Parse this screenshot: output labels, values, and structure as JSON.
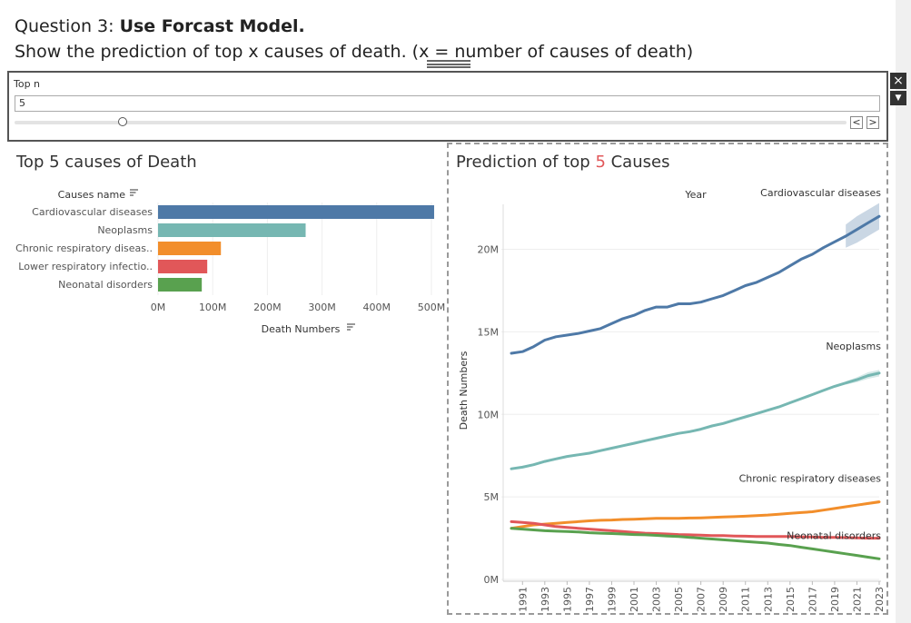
{
  "question": {
    "prefix": "Question 3: ",
    "bold": "Use Forcast Model.",
    "line2": "Show the prediction of top  x causes of death. (x = number of causes of death)"
  },
  "parameter": {
    "title": "Top n",
    "value": "5",
    "slider_fraction": 0.13,
    "prev_label": "<",
    "next_label": ">",
    "close_icon": "close-icon",
    "menu_icon": "chevron-down-icon"
  },
  "left": {
    "title": "Top 5 causes of Death"
  },
  "right": {
    "title_prefix": "Prediction of top ",
    "title_n": "5",
    "title_suffix": " Causes"
  },
  "colors": {
    "cardio": "#4e79a7",
    "neoplasms": "#76b7b2",
    "chronic": "#f28e2b",
    "lower": "#e15759",
    "neonatal": "#59a14f"
  },
  "chart_data": [
    {
      "type": "bar",
      "orientation": "horizontal",
      "category_header": "Causes name",
      "categories": [
        "Cardiovascular diseases",
        "Neoplasms",
        "Chronic respiratory diseas..",
        "Lower respiratory infectio..",
        "Neonatal disorders"
      ],
      "values": [
        505000000,
        270000000,
        115000000,
        90000000,
        80000000
      ],
      "xlabel": "Death Numbers",
      "xlim": [
        0,
        520000000
      ],
      "xticks": [
        {
          "v": 0,
          "label": "0M"
        },
        {
          "v": 100000000,
          "label": "100M"
        },
        {
          "v": 200000000,
          "label": "200M"
        },
        {
          "v": 300000000,
          "label": "300M"
        },
        {
          "v": 400000000,
          "label": "400M"
        },
        {
          "v": 500000000,
          "label": "500M"
        }
      ]
    },
    {
      "type": "line",
      "top_label": "Year",
      "ylabel": "Death Numbers",
      "xlim": [
        1990,
        2023
      ],
      "ylim": [
        0,
        23000000
      ],
      "yticks": [
        {
          "v": 0,
          "label": "0M"
        },
        {
          "v": 5000000,
          "label": "5M"
        },
        {
          "v": 10000000,
          "label": "10M"
        },
        {
          "v": 15000000,
          "label": "15M"
        },
        {
          "v": 20000000,
          "label": "20M"
        }
      ],
      "xticks": [
        1991,
        1993,
        1995,
        1997,
        1999,
        2001,
        2003,
        2005,
        2007,
        2009,
        2011,
        2013,
        2015,
        2017,
        2019,
        2021,
        2023
      ],
      "forecast_start": 2020,
      "series": [
        {
          "name": "Cardiovascular diseases",
          "color": "#4e79a7",
          "points": [
            [
              1990,
              13.7
            ],
            [
              1991,
              13.8
            ],
            [
              1992,
              14.1
            ],
            [
              1993,
              14.5
            ],
            [
              1994,
              14.7
            ],
            [
              1995,
              14.8
            ],
            [
              1996,
              14.9
            ],
            [
              1997,
              15.05
            ],
            [
              1998,
              15.2
            ],
            [
              1999,
              15.5
            ],
            [
              2000,
              15.8
            ],
            [
              2001,
              16.0
            ],
            [
              2002,
              16.3
            ],
            [
              2003,
              16.5
            ],
            [
              2004,
              16.5
            ],
            [
              2005,
              16.7
            ],
            [
              2006,
              16.7
            ],
            [
              2007,
              16.8
            ],
            [
              2008,
              17.0
            ],
            [
              2009,
              17.2
            ],
            [
              2010,
              17.5
            ],
            [
              2011,
              17.8
            ],
            [
              2012,
              18.0
            ],
            [
              2013,
              18.3
            ],
            [
              2014,
              18.6
            ],
            [
              2015,
              19.0
            ],
            [
              2016,
              19.4
            ],
            [
              2017,
              19.7
            ],
            [
              2018,
              20.1
            ],
            [
              2019,
              20.45
            ],
            [
              2020,
              20.8
            ],
            [
              2021,
              21.2
            ],
            [
              2022,
              21.6
            ],
            [
              2023,
              22.0
            ]
          ],
          "band": [
            [
              2020,
              20.1,
              21.5
            ],
            [
              2021,
              20.4,
              22.0
            ],
            [
              2022,
              20.8,
              22.4
            ],
            [
              2023,
              21.2,
              22.8
            ]
          ],
          "label": "Cardiovascular diseases"
        },
        {
          "name": "Neoplasms",
          "color": "#76b7b2",
          "points": [
            [
              1990,
              6.7
            ],
            [
              1991,
              6.8
            ],
            [
              1992,
              6.95
            ],
            [
              1993,
              7.15
            ],
            [
              1994,
              7.3
            ],
            [
              1995,
              7.45
            ],
            [
              1996,
              7.55
            ],
            [
              1997,
              7.65
            ],
            [
              1998,
              7.8
            ],
            [
              1999,
              7.95
            ],
            [
              2000,
              8.1
            ],
            [
              2001,
              8.25
            ],
            [
              2002,
              8.4
            ],
            [
              2003,
              8.55
            ],
            [
              2004,
              8.7
            ],
            [
              2005,
              8.85
            ],
            [
              2006,
              8.95
            ],
            [
              2007,
              9.1
            ],
            [
              2008,
              9.3
            ],
            [
              2009,
              9.45
            ],
            [
              2010,
              9.65
            ],
            [
              2011,
              9.85
            ],
            [
              2012,
              10.05
            ],
            [
              2013,
              10.25
            ],
            [
              2014,
              10.45
            ],
            [
              2015,
              10.7
            ],
            [
              2016,
              10.95
            ],
            [
              2017,
              11.2
            ],
            [
              2018,
              11.45
            ],
            [
              2019,
              11.7
            ],
            [
              2020,
              11.9
            ],
            [
              2021,
              12.1
            ],
            [
              2022,
              12.35
            ],
            [
              2023,
              12.5
            ]
          ],
          "band": [
            [
              2020,
              11.8,
              12.0
            ],
            [
              2021,
              11.95,
              12.25
            ],
            [
              2022,
              12.15,
              12.55
            ],
            [
              2023,
              12.3,
              12.7
            ]
          ],
          "label": "Neoplasms"
        },
        {
          "name": "Chronic respiratory diseases",
          "color": "#f28e2b",
          "points": [
            [
              1990,
              3.1
            ],
            [
              1991,
              3.2
            ],
            [
              1992,
              3.3
            ],
            [
              1993,
              3.35
            ],
            [
              1994,
              3.4
            ],
            [
              1995,
              3.45
            ],
            [
              1996,
              3.5
            ],
            [
              1997,
              3.55
            ],
            [
              1998,
              3.58
            ],
            [
              1999,
              3.6
            ],
            [
              2000,
              3.63
            ],
            [
              2001,
              3.65
            ],
            [
              2002,
              3.67
            ],
            [
              2003,
              3.7
            ],
            [
              2004,
              3.7
            ],
            [
              2005,
              3.7
            ],
            [
              2006,
              3.72
            ],
            [
              2007,
              3.73
            ],
            [
              2008,
              3.75
            ],
            [
              2009,
              3.78
            ],
            [
              2010,
              3.8
            ],
            [
              2011,
              3.83
            ],
            [
              2012,
              3.87
            ],
            [
              2013,
              3.9
            ],
            [
              2014,
              3.95
            ],
            [
              2015,
              4.0
            ],
            [
              2016,
              4.05
            ],
            [
              2017,
              4.1
            ],
            [
              2018,
              4.2
            ],
            [
              2019,
              4.3
            ],
            [
              2020,
              4.4
            ],
            [
              2021,
              4.5
            ],
            [
              2022,
              4.6
            ],
            [
              2023,
              4.7
            ]
          ],
          "band": [
            [
              2020,
              4.35,
              4.45
            ],
            [
              2021,
              4.43,
              4.57
            ],
            [
              2022,
              4.52,
              4.68
            ],
            [
              2023,
              4.6,
              4.8
            ]
          ],
          "label": "Chronic respiratory diseases"
        },
        {
          "name": "Lower respiratory infections",
          "color": "#e15759",
          "points": [
            [
              1990,
              3.5
            ],
            [
              1991,
              3.45
            ],
            [
              1992,
              3.4
            ],
            [
              1993,
              3.3
            ],
            [
              1994,
              3.2
            ],
            [
              1995,
              3.15
            ],
            [
              1996,
              3.1
            ],
            [
              1997,
              3.05
            ],
            [
              1998,
              3.0
            ],
            [
              1999,
              2.95
            ],
            [
              2000,
              2.9
            ],
            [
              2001,
              2.85
            ],
            [
              2002,
              2.8
            ],
            [
              2003,
              2.78
            ],
            [
              2004,
              2.75
            ],
            [
              2005,
              2.72
            ],
            [
              2006,
              2.7
            ],
            [
              2007,
              2.68
            ],
            [
              2008,
              2.66
            ],
            [
              2009,
              2.65
            ],
            [
              2010,
              2.63
            ],
            [
              2011,
              2.62
            ],
            [
              2012,
              2.6
            ],
            [
              2013,
              2.6
            ],
            [
              2014,
              2.6
            ],
            [
              2015,
              2.6
            ],
            [
              2016,
              2.58
            ],
            [
              2017,
              2.57
            ],
            [
              2018,
              2.55
            ],
            [
              2019,
              2.55
            ],
            [
              2020,
              2.53
            ],
            [
              2021,
              2.52
            ],
            [
              2022,
              2.5
            ],
            [
              2023,
              2.5
            ]
          ],
          "band": [
            [
              2020,
              2.48,
              2.58
            ],
            [
              2021,
              2.46,
              2.58
            ],
            [
              2022,
              2.44,
              2.56
            ],
            [
              2023,
              2.44,
              2.56
            ]
          ],
          "label": ""
        },
        {
          "name": "Neonatal disorders",
          "color": "#59a14f",
          "points": [
            [
              1990,
              3.1
            ],
            [
              1991,
              3.05
            ],
            [
              1992,
              3.0
            ],
            [
              1993,
              2.95
            ],
            [
              1994,
              2.92
            ],
            [
              1995,
              2.9
            ],
            [
              1996,
              2.87
            ],
            [
              1997,
              2.83
            ],
            [
              1998,
              2.8
            ],
            [
              1999,
              2.78
            ],
            [
              2000,
              2.75
            ],
            [
              2001,
              2.72
            ],
            [
              2002,
              2.7
            ],
            [
              2003,
              2.67
            ],
            [
              2004,
              2.63
            ],
            [
              2005,
              2.6
            ],
            [
              2006,
              2.55
            ],
            [
              2007,
              2.5
            ],
            [
              2008,
              2.45
            ],
            [
              2009,
              2.4
            ],
            [
              2010,
              2.35
            ],
            [
              2011,
              2.3
            ],
            [
              2012,
              2.25
            ],
            [
              2013,
              2.2
            ],
            [
              2014,
              2.12
            ],
            [
              2015,
              2.05
            ],
            [
              2016,
              1.95
            ],
            [
              2017,
              1.85
            ],
            [
              2018,
              1.75
            ],
            [
              2019,
              1.65
            ],
            [
              2020,
              1.55
            ],
            [
              2021,
              1.45
            ],
            [
              2022,
              1.35
            ],
            [
              2023,
              1.25
            ]
          ],
          "band": [
            [
              2020,
              1.5,
              1.6
            ],
            [
              2021,
              1.4,
              1.5
            ],
            [
              2022,
              1.3,
              1.4
            ],
            [
              2023,
              1.2,
              1.3
            ]
          ],
          "label": "Neonatal disorders"
        }
      ]
    }
  ]
}
